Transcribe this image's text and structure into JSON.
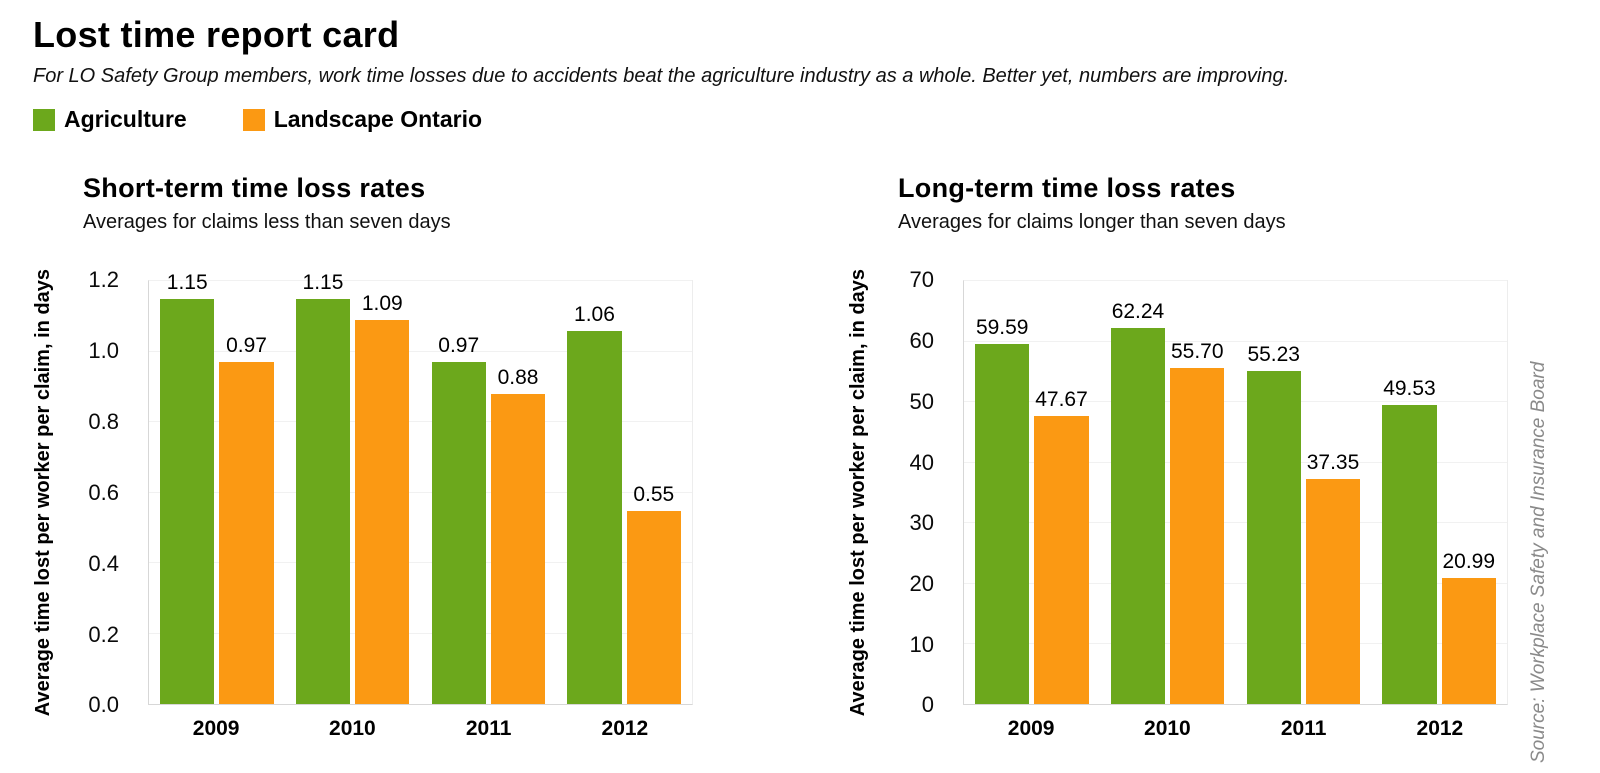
{
  "page": {
    "title": "Lost time report card",
    "subtitle": "For LO Safety Group members, work time losses due to accidents beat the agriculture industry as a whole. Better yet, numbers are improving.",
    "source": "Source: Workplace Safety and Insurance Board"
  },
  "legend": {
    "items": [
      {
        "label": "Agriculture",
        "color": "#6CA81C"
      },
      {
        "label": "Landscape Ontario",
        "color": "#FB9913"
      }
    ]
  },
  "colors": {
    "agriculture": "#6CA81C",
    "landscape_ontario": "#FB9913",
    "gridline": "#f1f1f1",
    "axis": "#d7d7d7",
    "source_text": "#8a8a8a"
  },
  "chart_data": [
    {
      "type": "bar",
      "title": "Short-term time loss rates",
      "subtitle": "Averages for claims less than seven days",
      "ylabel": "Average time lost per worker per claim, in days",
      "xlabel": "",
      "categories": [
        "2009",
        "2010",
        "2011",
        "2012"
      ],
      "series": [
        {
          "name": "Agriculture",
          "color_key": "agriculture",
          "values": [
            1.15,
            1.15,
            0.97,
            1.06
          ]
        },
        {
          "name": "Landscape Ontario",
          "color_key": "landscape_ontario",
          "values": [
            0.97,
            1.09,
            0.88,
            0.55
          ]
        }
      ],
      "ylim": [
        0,
        1.2
      ],
      "ytick_step": 0.2,
      "ytick_decimals": 1,
      "value_label_decimals": 2,
      "grid": true,
      "legend_position": "top-left shared above charts"
    },
    {
      "type": "bar",
      "title": "Long-term time loss rates",
      "subtitle": "Averages for claims longer than seven days",
      "ylabel": "Average time lost per worker per claim, in days",
      "xlabel": "",
      "categories": [
        "2009",
        "2010",
        "2011",
        "2012"
      ],
      "series": [
        {
          "name": "Agriculture",
          "color_key": "agriculture",
          "values": [
            59.59,
            62.24,
            55.23,
            49.53
          ]
        },
        {
          "name": "Landscape Ontario",
          "color_key": "landscape_ontario",
          "values": [
            47.67,
            55.7,
            37.35,
            20.99
          ]
        }
      ],
      "ylim": [
        0,
        70
      ],
      "ytick_step": 10,
      "ytick_decimals": 0,
      "value_label_decimals": 2,
      "grid": true,
      "legend_position": "top-left shared above charts"
    }
  ]
}
